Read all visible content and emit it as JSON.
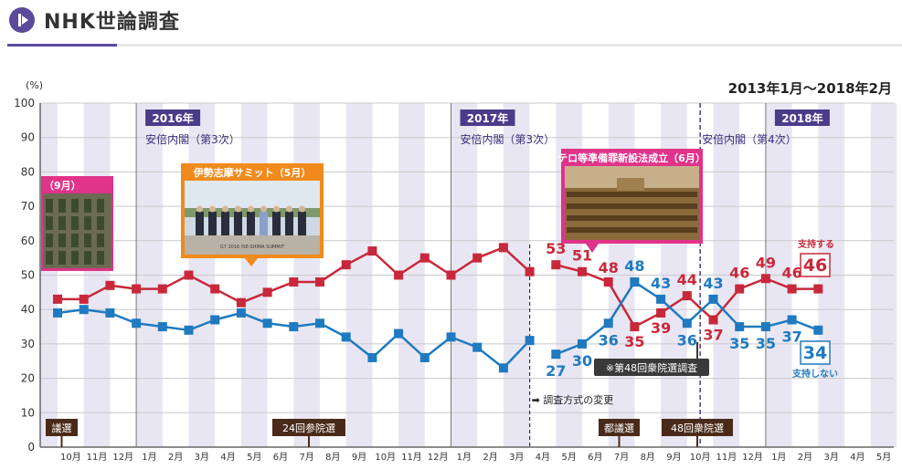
{
  "header": {
    "title": "NHK世論調査",
    "logo_icon": "play-icon"
  },
  "chart_data": {
    "type": "line",
    "date_range": "2013年1月～2018年2月",
    "y_unit": "(%)",
    "yticks": [
      "100",
      "90",
      "80",
      "70",
      "60",
      "50",
      "40",
      "30",
      "20",
      "10",
      "0"
    ],
    "ylim": [
      0,
      100
    ],
    "xticks": [
      "10月",
      "11月",
      "12月",
      "1月",
      "2月",
      "3月",
      "4月",
      "5月",
      "6月",
      "7月",
      "8月",
      "9月",
      "10月",
      "11月",
      "12月",
      "1月",
      "2月",
      "3月",
      "4月",
      "5月",
      "6月",
      "7月",
      "8月",
      "9月",
      "10月",
      "11月",
      "12月",
      "1月",
      "2月",
      "3月",
      "4月",
      "5月"
    ],
    "series": [
      {
        "name": "支持する",
        "color": "#c8283a",
        "x_index": [
          -0.5,
          0.5,
          1.5,
          2.5,
          3.5,
          4.5,
          5.5,
          6.5,
          7.5,
          8.5,
          9.5,
          10.5,
          11.5,
          12.5,
          13.5,
          14.5,
          15.5,
          16.5,
          17.5,
          18.5,
          19.5,
          20.5,
          21.5,
          22.5,
          23.5,
          24.5,
          25.5,
          26.5,
          27.5,
          28.5
        ],
        "values": [
          43,
          43,
          47,
          46,
          46,
          50,
          46,
          42,
          45,
          48,
          48,
          53,
          57,
          50,
          55,
          50,
          55,
          58,
          51,
          53,
          51,
          48,
          35,
          39,
          44,
          37,
          46,
          49,
          46,
          46
        ],
        "gap_after_index": 18,
        "labels": [
          {
            "i": 19,
            "text": "53"
          },
          {
            "i": 20,
            "text": "51"
          },
          {
            "i": 21,
            "text": "48"
          },
          {
            "i": 22,
            "text": "35"
          },
          {
            "i": 23,
            "text": "39"
          },
          {
            "i": 24,
            "text": "44"
          },
          {
            "i": 25,
            "text": "37"
          },
          {
            "i": 26,
            "text": "46"
          },
          {
            "i": 27,
            "text": "49"
          },
          {
            "i": 28,
            "text": "46"
          }
        ],
        "end_label": "支持する",
        "end_value": "46"
      },
      {
        "name": "支持しない",
        "color": "#1f7ac0",
        "x_index": [
          -0.5,
          0.5,
          1.5,
          2.5,
          3.5,
          4.5,
          5.5,
          6.5,
          7.5,
          8.5,
          9.5,
          10.5,
          11.5,
          12.5,
          13.5,
          14.5,
          15.5,
          16.5,
          17.5,
          18.5,
          19.5,
          20.5,
          21.5,
          22.5,
          23.5,
          24.5,
          25.5,
          26.5,
          27.5,
          28.5
        ],
        "values": [
          39,
          40,
          39,
          36,
          35,
          34,
          37,
          39,
          36,
          35,
          36,
          32,
          26,
          33,
          26,
          32,
          29,
          23,
          31,
          27,
          30,
          36,
          48,
          43,
          36,
          43,
          35,
          35,
          37,
          34
        ],
        "gap_after_index": 18,
        "labels": [
          {
            "i": 19,
            "text": "27"
          },
          {
            "i": 20,
            "text": "30"
          },
          {
            "i": 21,
            "text": "36"
          },
          {
            "i": 22,
            "text": "48"
          },
          {
            "i": 23,
            "text": "43"
          },
          {
            "i": 24,
            "text": "36"
          },
          {
            "i": 25,
            "text": "43"
          },
          {
            "i": 26,
            "text": "35"
          },
          {
            "i": 27,
            "text": "35"
          },
          {
            "i": 28,
            "text": "37"
          }
        ],
        "end_label": "支持しない",
        "end_value": "34"
      }
    ],
    "year_labels": [
      {
        "text": "2016年",
        "sub": "安倍内閣（第3次）",
        "at": 3
      },
      {
        "text": "2017年",
        "sub": "安倍内閣（第3次）",
        "at": 15
      },
      {
        "text": "2018年",
        "sub": "",
        "at": 27
      }
    ],
    "cabinet_4": "安倍内閣（第4次）",
    "callouts": [
      {
        "text": "（9月）",
        "color": "#e0338a",
        "photo": "soldiers-photo"
      },
      {
        "text": "伊勢志摩サミット（5月）",
        "color": "#f08a1c",
        "photo": "summit-photo",
        "photo_caption": "G7 2016 ISE-SHIMA SUMMIT"
      },
      {
        "text": "テロ等準備罪新設法成立（6月）",
        "color": "#e0338a",
        "photo": "diet-chamber-photo"
      }
    ],
    "event_tags": [
      "議選",
      "24回参院選",
      "都議選",
      "48回衆院選"
    ],
    "method_change": "➡ 調査方式の変更",
    "survey_note": "※第48回衆院選調査"
  }
}
